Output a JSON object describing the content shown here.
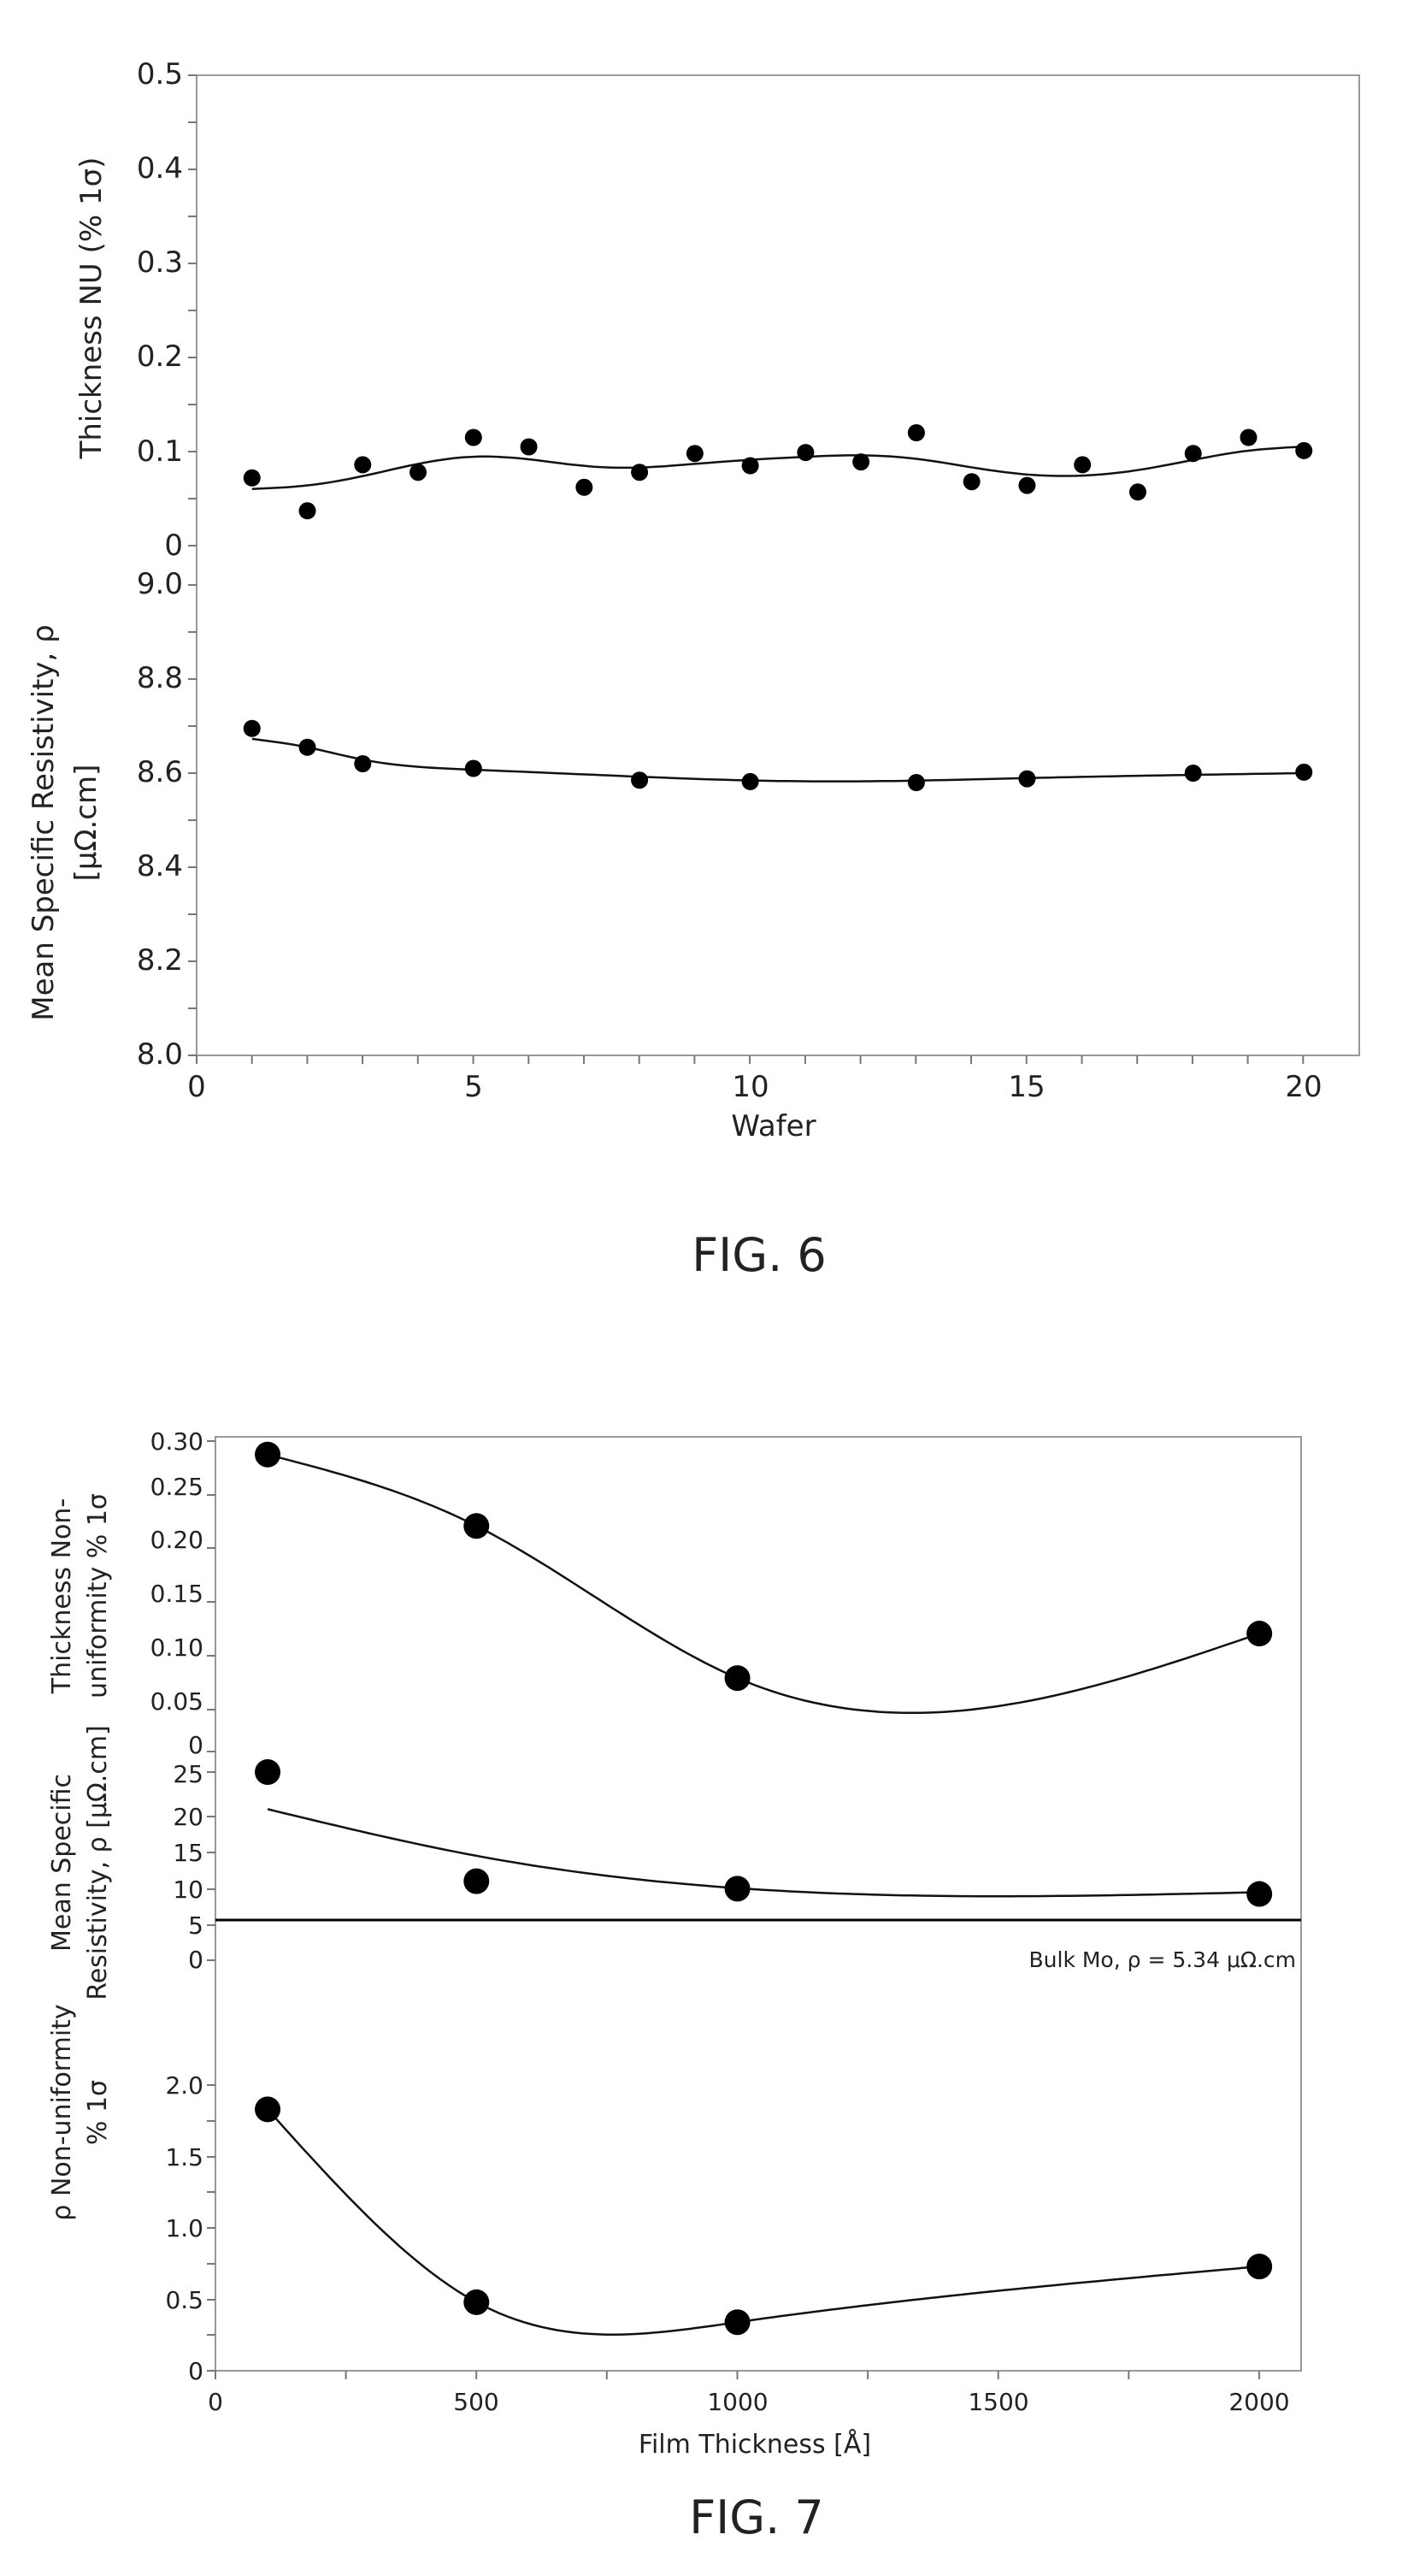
{
  "fig6": {
    "caption": "FIG. 6",
    "xlabel": "Wafer",
    "x_ticks": [
      "0",
      "5",
      "10",
      "15",
      "20"
    ],
    "top_panel": {
      "ylabel": "Thickness NU (% 1σ)",
      "y_ticks": [
        "0",
        "0.1",
        "0.2",
        "0.3",
        "0.4",
        "0.5"
      ]
    },
    "bottom_panel": {
      "ylabel_line1": "Mean Specific Resistivity, ρ",
      "ylabel_line2": "[μΩ.cm]",
      "y_ticks": [
        "8.0",
        "8.2",
        "8.4",
        "8.6",
        "8.8",
        "9.0"
      ]
    }
  },
  "fig7": {
    "caption": "FIG. 7",
    "xlabel": "Film Thickness [Å]",
    "x_ticks": [
      "0",
      "500",
      "1000",
      "1500",
      "2000"
    ],
    "top_panel": {
      "ylabel_line1": "Thickness Non-",
      "ylabel_line2": "uniformity % 1σ",
      "y_ticks": [
        "0",
        "0.05",
        "0.10",
        "0.15",
        "0.20",
        "0.25",
        "0.30"
      ]
    },
    "mid_panel": {
      "ylabel_line1": "Mean Specific",
      "ylabel_line2": "Resistivity, ρ [μΩ.cm]",
      "y_ticks": [
        "0",
        "5",
        "10",
        "15",
        "20",
        "25"
      ],
      "annotation": "Bulk Mo, ρ = 5.34 μΩ.cm"
    },
    "bottom_panel": {
      "ylabel_line1": "ρ Non-uniformity",
      "ylabel_line2": "% 1σ",
      "y_ticks": [
        "0",
        "0.5",
        "1.0",
        "1.5",
        "2.0"
      ]
    }
  },
  "chart_data": [
    {
      "type": "scatter",
      "title": "",
      "xlabel": "Wafer",
      "ylabel": "Thickness NU (% 1σ)",
      "xlim": [
        0,
        21
      ],
      "ylim": [
        0,
        0.5
      ],
      "grid": false,
      "x": [
        1,
        2,
        3,
        4,
        5,
        6,
        7,
        8,
        9,
        10,
        11,
        12,
        13,
        14,
        15,
        16,
        17,
        18,
        19,
        20
      ],
      "y": [
        0.072,
        0.037,
        0.086,
        0.078,
        0.115,
        0.105,
        0.062,
        0.078,
        0.098,
        0.085,
        0.099,
        0.089,
        0.12,
        0.068,
        0.064,
        0.086,
        0.057,
        0.098,
        0.115,
        0.101
      ],
      "fit_line": true
    },
    {
      "type": "scatter",
      "title": "",
      "xlabel": "Wafer",
      "ylabel": "Mean Specific Resistivity, ρ [μΩ.cm]",
      "xlim": [
        0,
        21
      ],
      "ylim": [
        8.0,
        9.0
      ],
      "grid": false,
      "x": [
        1,
        2,
        3,
        5,
        8,
        10,
        13,
        15,
        18,
        20
      ],
      "y": [
        8.695,
        8.655,
        8.62,
        8.61,
        8.585,
        8.582,
        8.58,
        8.588,
        8.6,
        8.602
      ],
      "fit_line": true
    },
    {
      "type": "scatter",
      "title": "",
      "xlabel": "Film Thickness [Å]",
      "ylabel": "Thickness Non-uniformity % 1σ",
      "xlim": [
        0,
        2080
      ],
      "ylim": [
        0,
        0.3
      ],
      "grid": false,
      "x": [
        100,
        500,
        1000,
        2000
      ],
      "y": [
        0.287,
        0.218,
        0.071,
        0.114
      ],
      "fit_line": true
    },
    {
      "type": "scatter",
      "title": "",
      "xlabel": "Film Thickness [Å]",
      "ylabel": "Mean Specific Resistivity, ρ [μΩ.cm]",
      "xlim": [
        0,
        2080
      ],
      "ylim": [
        0,
        25
      ],
      "grid": false,
      "x": [
        100,
        500,
        1000,
        2000
      ],
      "y": [
        25.0,
        10.5,
        9.5,
        8.8
      ],
      "reference_line": {
        "y": 5.34,
        "label": "Bulk Mo, ρ = 5.34 μΩ.cm"
      },
      "fit_line": true
    },
    {
      "type": "scatter",
      "title": "",
      "xlabel": "Film Thickness [Å]",
      "ylabel": "ρ Non-uniformity % 1σ",
      "xlim": [
        0,
        2080
      ],
      "ylim": [
        0,
        2.0
      ],
      "grid": false,
      "x": [
        100,
        500,
        1000,
        2000
      ],
      "y": [
        1.83,
        0.48,
        0.34,
        0.73
      ],
      "fit_line": true
    }
  ]
}
